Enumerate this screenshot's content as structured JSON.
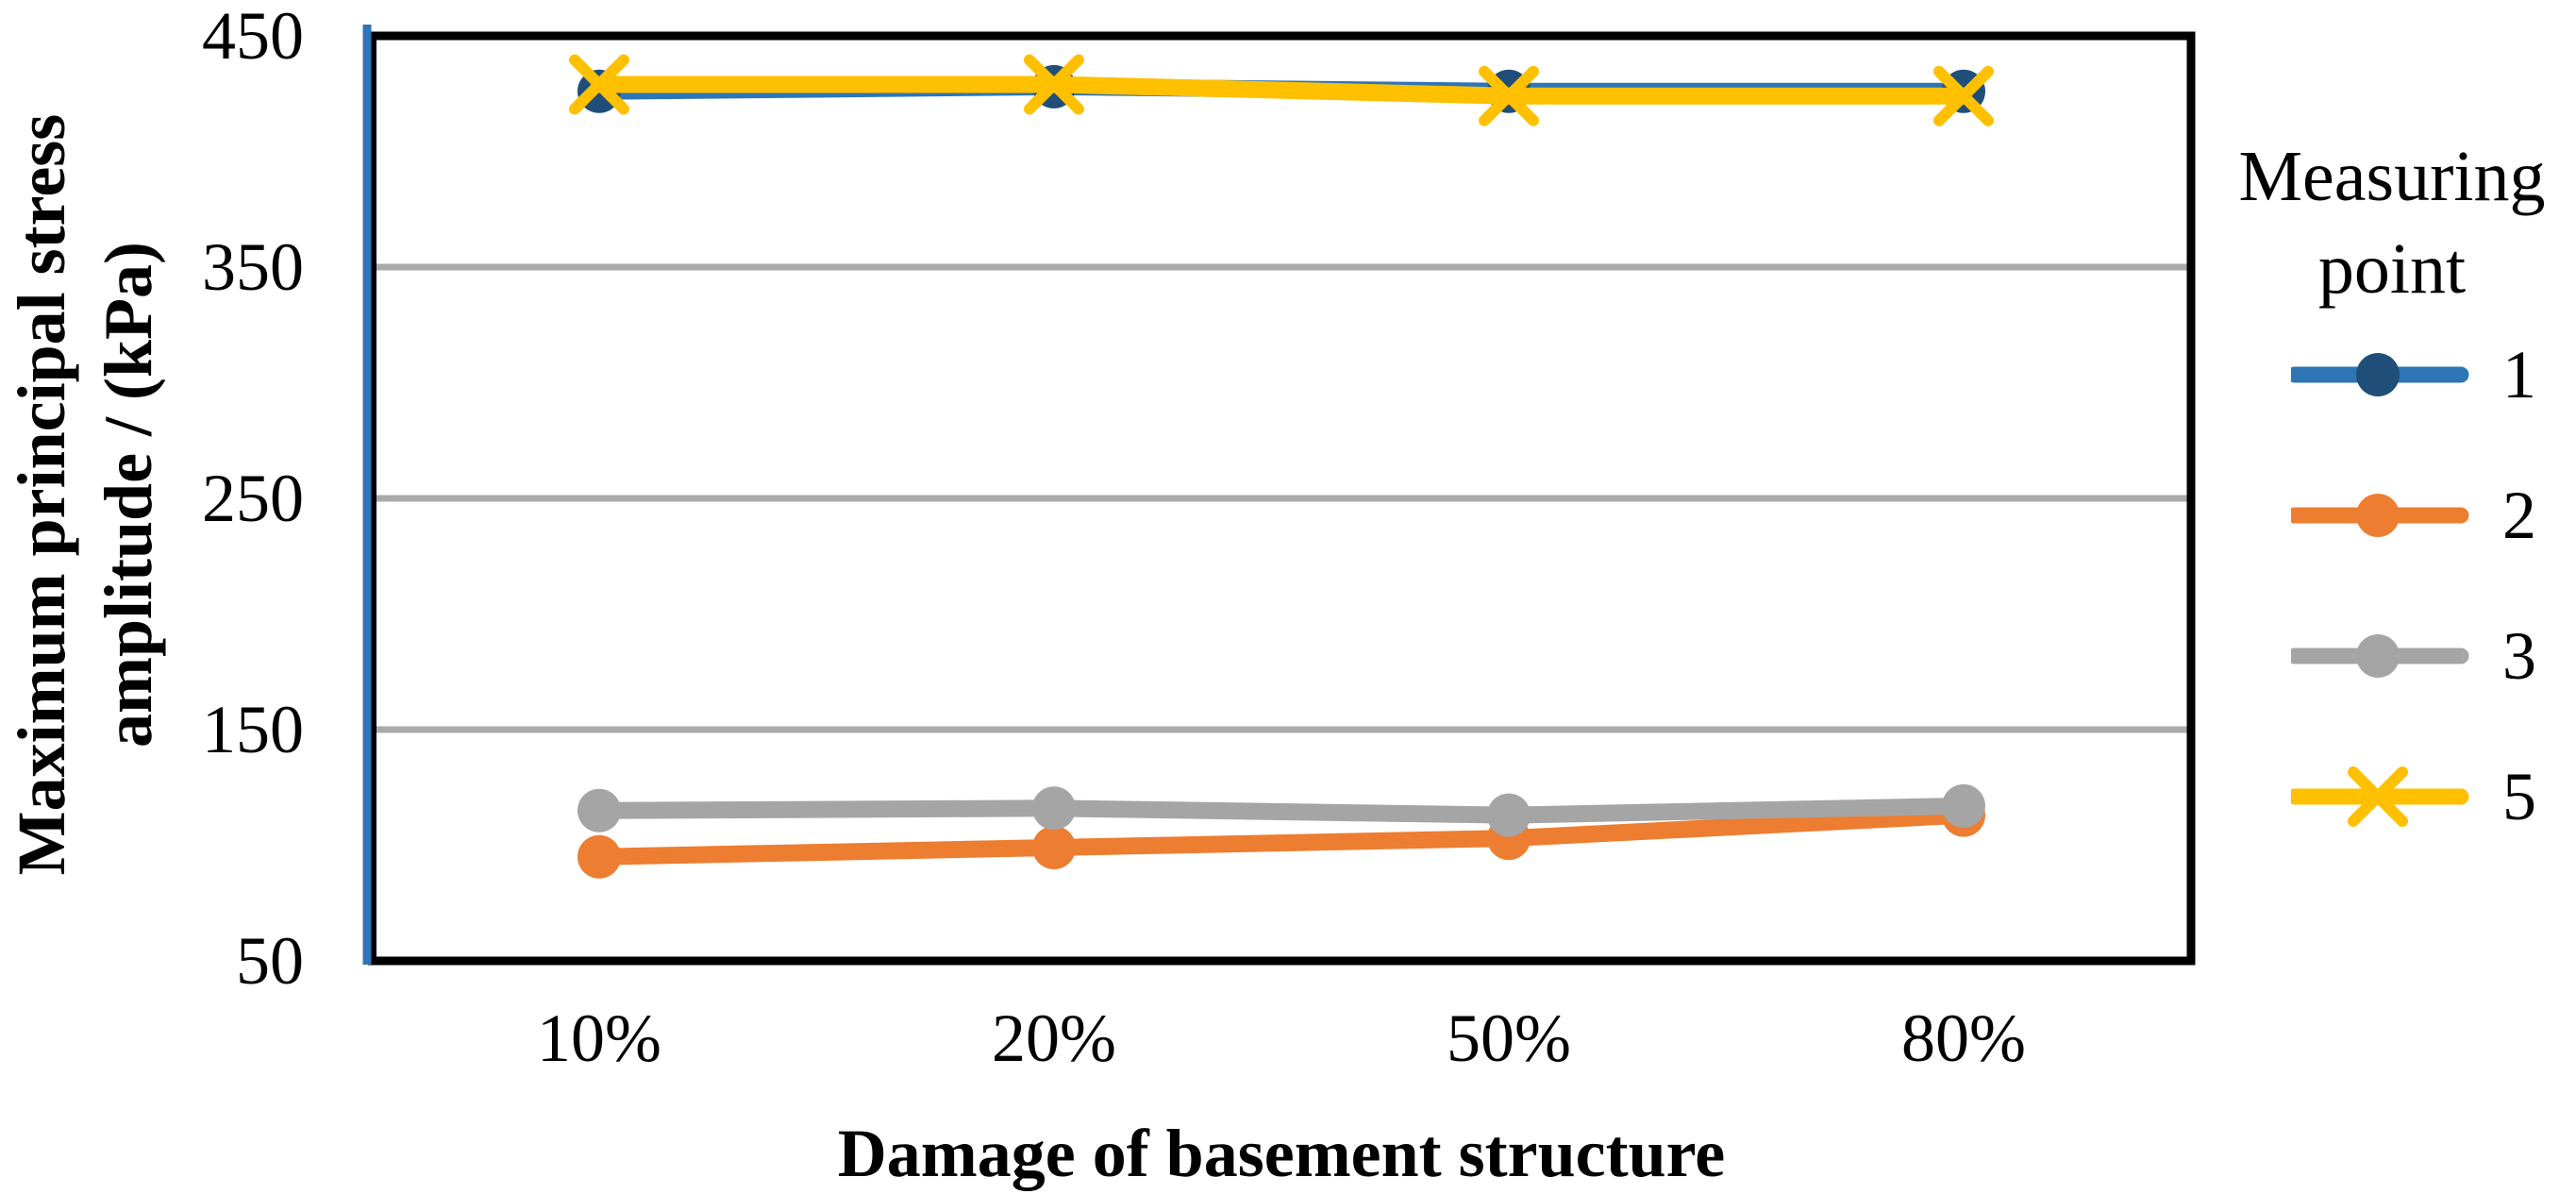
{
  "chart_data": {
    "type": "line",
    "title": "",
    "xlabel": "Damage of basement structure",
    "ylabel": "Maximum principal stress amplitude / (kPa)",
    "ylabel_line1": "Maximum principal stress",
    "ylabel_line2": "amplitude / (kPa)",
    "categories": [
      "10%",
      "20%",
      "50%",
      "80%"
    ],
    "series": [
      {
        "name": "1",
        "values": [
          426,
          428,
          426,
          426
        ],
        "line_color": "#2E75B6",
        "marker": "circle",
        "marker_color": "#1F4E79"
      },
      {
        "name": "2",
        "values": [
          95,
          99,
          103,
          113
        ],
        "line_color": "#ED7D31",
        "marker": "circle",
        "marker_color": "#ED7D31"
      },
      {
        "name": "3",
        "values": [
          115,
          116,
          113,
          117
        ],
        "line_color": "#A5A5A5",
        "marker": "circle",
        "marker_color": "#A5A5A5"
      },
      {
        "name": "5",
        "values": [
          429,
          429,
          424,
          424
        ],
        "line_color": "#FFC000",
        "marker": "x",
        "marker_color": "#FFC000"
      }
    ],
    "x_axis": {
      "tick_labels": [
        "10%",
        "20%",
        "50%",
        "80%"
      ]
    },
    "y_axis": {
      "min": 50,
      "max": 450,
      "tick_values": [
        450,
        350,
        250,
        150,
        50
      ],
      "tick_labels": [
        "450",
        "350",
        "250",
        "150",
        "50"
      ],
      "gridline_values": [
        350,
        250,
        150
      ],
      "grid": "on"
    },
    "legend": {
      "position": "right",
      "title": "Measuring point",
      "title_line1": "Measuring",
      "title_line2": "point",
      "entries": [
        "1",
        "2",
        "3",
        "5"
      ]
    },
    "colors": {
      "background": "#FFFFFF",
      "text": "#000000",
      "grid": "#AAAAAA",
      "plot_border": "#000000",
      "y_axis_line": "#2E75B6"
    }
  }
}
